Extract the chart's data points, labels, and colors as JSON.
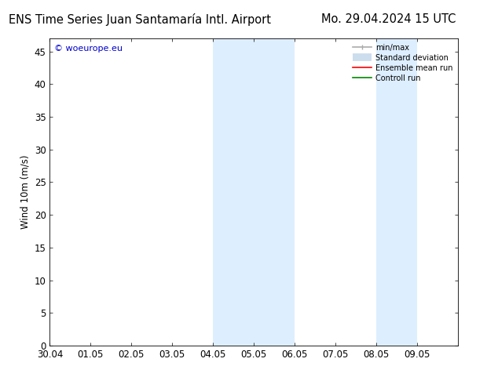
{
  "title_left": "ENS Time Series Juan Santamaría Intl. Airport",
  "title_right": "Mo. 29.04.2024 15 UTC",
  "ylabel": "Wind 10m (m/s)",
  "watermark": "© woeurope.eu",
  "watermark_color": "#0000cc",
  "xlim_start": 0,
  "xlim_end": 10,
  "ylim": [
    0,
    47
  ],
  "yticks": [
    0,
    5,
    10,
    15,
    20,
    25,
    30,
    35,
    40,
    45
  ],
  "xtick_labels": [
    "30.04",
    "01.05",
    "02.05",
    "03.05",
    "04.05",
    "05.05",
    "06.05",
    "07.05",
    "08.05",
    "09.05"
  ],
  "shaded_bands": [
    {
      "x_start": 4.0,
      "x_end": 4.5,
      "color": "#ddeeff"
    },
    {
      "x_start": 4.5,
      "x_end": 6.0,
      "color": "#ddeeff"
    },
    {
      "x_start": 8.0,
      "x_end": 8.5,
      "color": "#ddeeff"
    },
    {
      "x_start": 8.5,
      "x_end": 9.0,
      "color": "#ddeeff"
    }
  ],
  "legend_entries": [
    {
      "label": "min/max",
      "color": "#aaaaaa",
      "lw": 1.2
    },
    {
      "label": "Standard deviation",
      "color": "#ccddee",
      "lw": 7
    },
    {
      "label": "Ensemble mean run",
      "color": "#ff0000",
      "lw": 1.2
    },
    {
      "label": "Controll run",
      "color": "#008800",
      "lw": 1.2
    }
  ],
  "bg_color": "#ffffff",
  "plot_bg_color": "#ffffff",
  "font_size": 8.5,
  "title_fontsize": 10.5
}
